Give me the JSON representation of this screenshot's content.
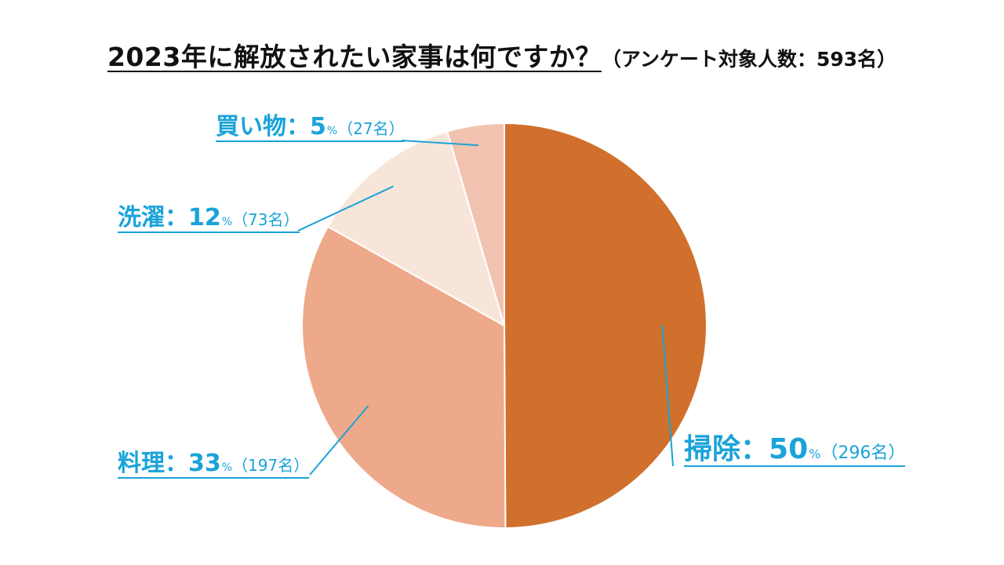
{
  "title": {
    "main": "2023年に解放されたい家事は何ですか？",
    "sub": "（アンケート対象人数：593名）"
  },
  "labels": {
    "colon": "：",
    "percent_unit": "%"
  },
  "chart_data": {
    "type": "pie",
    "slices": [
      {
        "category": "掃除",
        "percent": "50",
        "count": "（296名）",
        "value": 296,
        "color": "#d0702c"
      },
      {
        "category": "料理",
        "percent": "33",
        "count": "（197名）",
        "value": 197,
        "color": "#eea98a"
      },
      {
        "category": "洗濯",
        "percent": "12",
        "count": "（73名）",
        "value": 73,
        "color": "#f8e5da"
      },
      {
        "category": "買い物",
        "percent": "5",
        "count": "（27名）",
        "value": 27,
        "color": "#f2c2b0"
      }
    ],
    "start": "12 o'clock",
    "direction": "clockwise",
    "legend": "none",
    "label_color": "#1aa3d9"
  }
}
